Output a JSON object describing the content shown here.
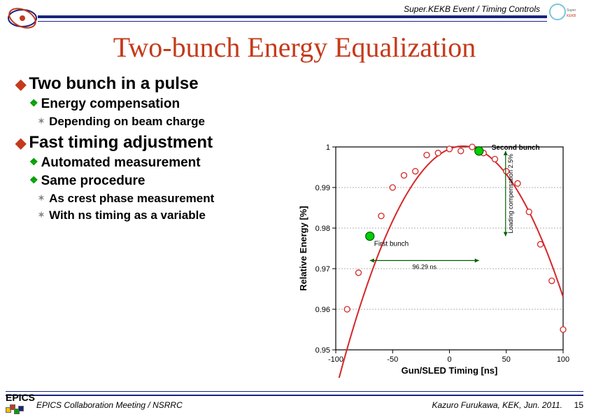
{
  "header": {
    "context": "Super.KEKB Event / Timing Controls"
  },
  "title": "Two-bunch Energy  Equalization",
  "bullets": {
    "b1": "Two bunch in a pulse",
    "b1_1": "Energy compensation",
    "b1_1_1": "Depending on beam charge",
    "b2": "Fast timing adjustment",
    "b2_1": "Automated measurement",
    "b2_2": "Same procedure",
    "b2_2_1": "As crest phase measurement",
    "b2_2_2": "With ns timing as a variable"
  },
  "chart": {
    "type": "scatter-with-fit",
    "xlabel": "Gun/SLED Timing [ns]",
    "ylabel": "Relative Energy [%]",
    "xlim": [
      -100,
      100
    ],
    "xtick_positions": [
      -100,
      -50,
      0,
      50,
      100
    ],
    "xtick_labels": [
      "-100",
      "-50",
      "0",
      "50",
      "100"
    ],
    "ylim": [
      0.95,
      1.0
    ],
    "ytick_positions": [
      0.95,
      0.96,
      0.97,
      0.98,
      0.99,
      1.0
    ],
    "ytick_labels": [
      "0.95",
      "0.96",
      "0.97",
      "0.98",
      "0.99",
      "1"
    ],
    "background_color": "#ffffff",
    "grid_color": "#999999",
    "grid_dash": "2,2",
    "axis_color": "#000000",
    "curve_color": "#d62728",
    "curve_width": 2,
    "point_color": "#d62728",
    "point_fill": "#ffffff",
    "point_radius": 4,
    "highlight_color": "#00d000",
    "highlight_radius": 6,
    "label_fontsize": 13,
    "tick_fontsize": 11,
    "data_points": [
      {
        "x": -90,
        "y": 0.96
      },
      {
        "x": -80,
        "y": 0.969
      },
      {
        "x": -70,
        "y": 0.978
      },
      {
        "x": -60,
        "y": 0.983
      },
      {
        "x": -50,
        "y": 0.99
      },
      {
        "x": -40,
        "y": 0.993
      },
      {
        "x": -30,
        "y": 0.994
      },
      {
        "x": -20,
        "y": 0.998
      },
      {
        "x": -10,
        "y": 0.9985
      },
      {
        "x": 0,
        "y": 0.9995
      },
      {
        "x": 10,
        "y": 0.999
      },
      {
        "x": 20,
        "y": 1.0
      },
      {
        "x": 30,
        "y": 0.9985
      },
      {
        "x": 40,
        "y": 0.997
      },
      {
        "x": 50,
        "y": 0.994
      },
      {
        "x": 60,
        "y": 0.991
      },
      {
        "x": 70,
        "y": 0.984
      },
      {
        "x": 80,
        "y": 0.976
      },
      {
        "x": 90,
        "y": 0.967
      },
      {
        "x": 100,
        "y": 0.955
      }
    ],
    "highlight_points": [
      {
        "x": -70,
        "y": 0.978,
        "label": "First bunch"
      },
      {
        "x": 26,
        "y": 0.999,
        "label": "Second bunch"
      }
    ],
    "annotations": {
      "first_bunch": "First bunch",
      "second_bunch": "Second bunch",
      "x_span": "96.29 ns",
      "compensation": "Loading compensation 2.5%"
    }
  },
  "footer": {
    "epics": "EPICS",
    "left": "EPICS Collaboration Meeting / NSRRC",
    "right": "Kazuro Furukawa, KEK, Jun. 2011.",
    "page": "15"
  },
  "colors": {
    "title": "#c43a1a",
    "rule": "#1a237e",
    "l1_bullet": "#c43a1a",
    "l2_bullet": "#00a000",
    "l3_bullet": "#888888"
  }
}
